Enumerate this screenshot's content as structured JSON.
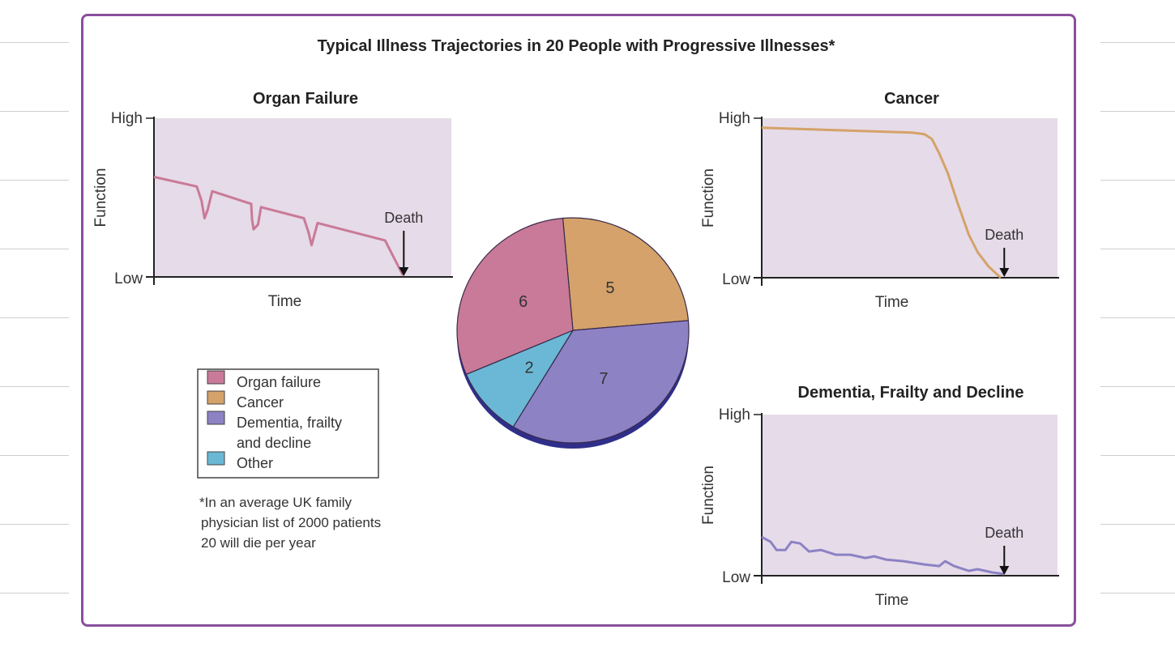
{
  "title": "Typical Illness Trajectories in 20 People with Progressive Illnesses*",
  "colors": {
    "frame": "#8a4f9c",
    "plot_bg": "#e6dbe8",
    "organ": "#c97a98",
    "cancer": "#d4a26a",
    "dementia": "#8c82c4",
    "other": "#6ab8d6",
    "pie_edge": "#3a2a4a"
  },
  "chart_data": [
    {
      "type": "line",
      "title": "Organ Failure",
      "xlabel": "Time",
      "ylabel": "Function",
      "y_tick_labels": [
        "Low",
        "High"
      ],
      "annotation": {
        "label": "Death",
        "time": 84
      },
      "color": "#c97a98",
      "series": [
        {
          "points": [
            [
              0,
              63
            ],
            [
              14.4,
              57
            ],
            [
              16,
              48
            ],
            [
              17,
              37
            ],
            [
              18,
              42
            ],
            [
              19.6,
              54
            ],
            [
              32.7,
              46
            ],
            [
              33,
              36
            ],
            [
              33.5,
              30
            ],
            [
              35,
              33
            ],
            [
              36,
              44
            ],
            [
              50.4,
              37
            ],
            [
              52,
              28
            ],
            [
              53,
              20
            ],
            [
              55,
              34
            ],
            [
              77.7,
              23
            ],
            [
              83.7,
              1
            ]
          ]
        }
      ]
    },
    {
      "type": "line",
      "title": "Cancer",
      "xlabel": "Time",
      "ylabel": "Function",
      "y_tick_labels": [
        "Low",
        "High"
      ],
      "annotation": {
        "label": "Death",
        "time": 82
      },
      "color": "#d4a26a",
      "series": [
        {
          "points": [
            [
              0,
              94
            ],
            [
              50.7,
              91
            ],
            [
              55,
              90
            ],
            [
              57.5,
              87
            ],
            [
              60,
              78
            ],
            [
              63,
              65
            ],
            [
              66,
              48
            ],
            [
              70,
              27
            ],
            [
              73,
              16
            ],
            [
              76.7,
              7
            ],
            [
              80.8,
              0
            ]
          ]
        }
      ]
    },
    {
      "type": "line",
      "title": "Dementia, Frailty and Decline",
      "xlabel": "Time",
      "ylabel": "Function",
      "y_tick_labels": [
        "Low",
        "High"
      ],
      "annotation": {
        "label": "Death",
        "time": 82
      },
      "color": "#8c82c4",
      "series": [
        {
          "points": [
            [
              0,
              24
            ],
            [
              3,
              21
            ],
            [
              5,
              16
            ],
            [
              8,
              16
            ],
            [
              10,
              21
            ],
            [
              13,
              20
            ],
            [
              16,
              15
            ],
            [
              20,
              16
            ],
            [
              25,
              13
            ],
            [
              30,
              13
            ],
            [
              35,
              11
            ],
            [
              38,
              12
            ],
            [
              42,
              10
            ],
            [
              48,
              9
            ],
            [
              55,
              7
            ],
            [
              60,
              6
            ],
            [
              62,
              9
            ],
            [
              65,
              6
            ],
            [
              70,
              3
            ],
            [
              73,
              4
            ],
            [
              78,
              2
            ],
            [
              82,
              1
            ]
          ]
        }
      ]
    },
    {
      "type": "pie",
      "slices": [
        {
          "label": "Cancer",
          "value": 5,
          "color": "#d4a26a"
        },
        {
          "label": "Dementia, frailty and decline",
          "value": 7,
          "color": "#8c82c4"
        },
        {
          "label": "Other",
          "value": 2,
          "color": "#6ab8d6"
        },
        {
          "label": "Organ failure",
          "value": 6,
          "color": "#c97a98"
        }
      ],
      "legend": {
        "placement": "left",
        "entries": [
          {
            "label": "Organ failure",
            "color": "#c97a98"
          },
          {
            "label": "Cancer",
            "color": "#d4a26a"
          },
          {
            "label": "Dementia, frailty and decline",
            "lines": [
              "Dementia, frailty",
              "and decline"
            ],
            "color": "#8c82c4"
          },
          {
            "label": "Other",
            "color": "#6ab8d6"
          }
        ]
      }
    }
  ],
  "footnote": [
    "*In an average UK family",
    "physician list of 2000 patients",
    "20 will die per year"
  ]
}
